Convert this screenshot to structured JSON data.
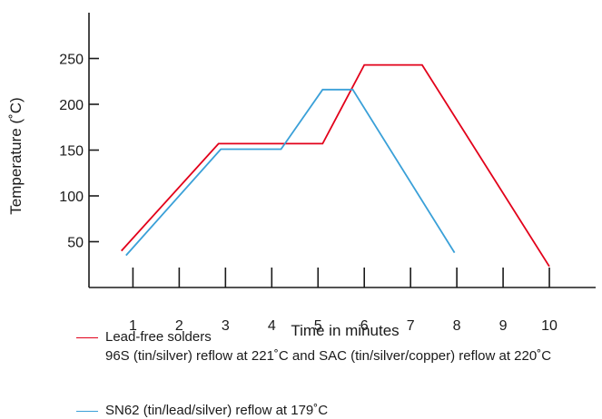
{
  "chart_data": {
    "type": "line",
    "xlabel": "Time in minutes",
    "ylabel": "Temperature (˚C)",
    "x_ticks": [
      1,
      2,
      3,
      4,
      5,
      6,
      7,
      8,
      9,
      10
    ],
    "y_ticks": [
      50,
      100,
      150,
      200,
      250
    ],
    "xlim": [
      0.05,
      11.0
    ],
    "ylim": [
      0,
      300
    ],
    "grid": false,
    "legend_position": "bottom",
    "series": [
      {
        "name": "Lead-free solders",
        "description": "96S (tin/silver) reflow at 221˚C and SAC (tin/silver/copper) reflow at 220˚C",
        "color": "#e2001a",
        "x": [
          0.75,
          2.85,
          5.1,
          6.0,
          7.25,
          10.0
        ],
        "y": [
          40,
          157,
          157,
          243,
          243,
          23
        ]
      },
      {
        "name": "SN62 (tin/lead/silver) reflow at 179˚C",
        "color": "#3aa0d8",
        "x": [
          0.85,
          2.9,
          4.2,
          5.1,
          5.75,
          7.95
        ],
        "y": [
          35,
          151,
          151,
          216,
          216,
          38
        ]
      }
    ]
  }
}
